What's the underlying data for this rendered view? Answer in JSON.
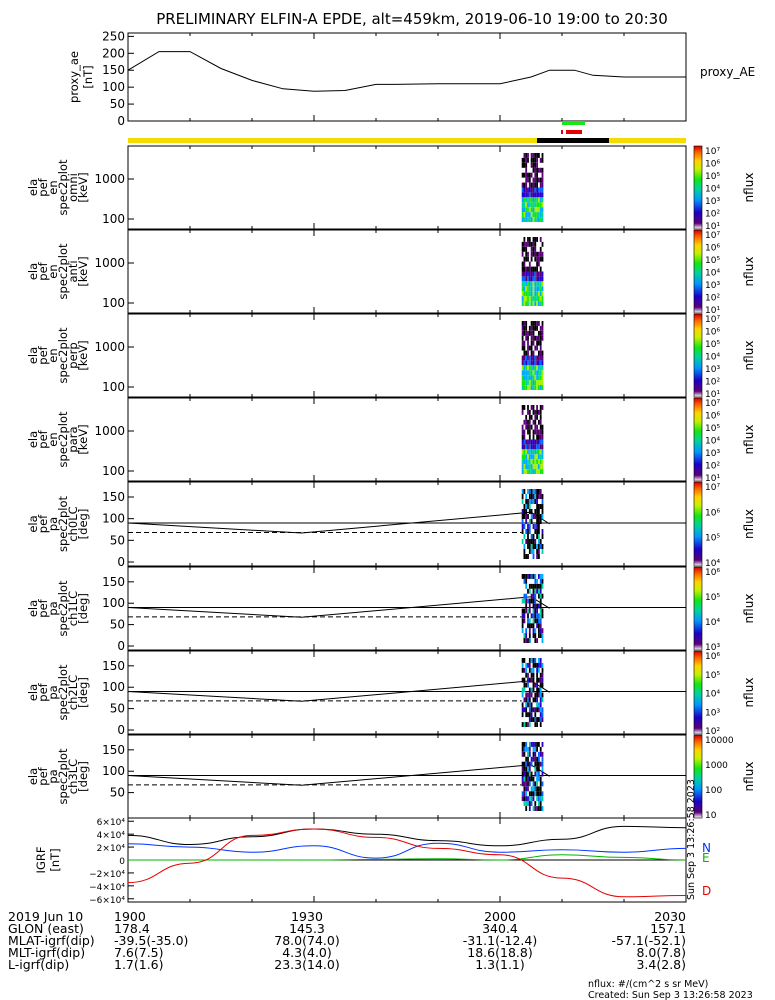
{
  "title": "PRELIMINARY ELFIN-A EPDE, alt=459km, 2019-06-10 19:00 to 20:30",
  "colors": {
    "flag_yellow": "#f5dc00",
    "flag_black": "#000000",
    "flag_green": "#19e619",
    "flag_red": "#e60000",
    "bfield_x": "#000000",
    "bfield_y": "#0033ff",
    "bfield_z": "#00b400",
    "bfield_d": "#e60000"
  },
  "chart_data": [
    {
      "type": "line",
      "name": "proxy_ae",
      "ylabel": [
        "proxy_ae",
        "[nT]"
      ],
      "right_label": "proxy_AE",
      "ylim": [
        0,
        260
      ],
      "yticks": [
        "250",
        "200",
        "150",
        "100",
        "50",
        "0"
      ],
      "ytick_values": [
        250,
        200,
        150,
        100,
        50,
        0
      ],
      "x_minutes": [
        0,
        5,
        10,
        15,
        20,
        25,
        30,
        35,
        40,
        43,
        50,
        55,
        60,
        65,
        68,
        72,
        75,
        80,
        85,
        90
      ],
      "values": [
        150,
        205,
        205,
        155,
        120,
        95,
        88,
        90,
        108,
        108,
        110,
        110,
        110,
        130,
        150,
        150,
        135,
        130,
        130,
        130
      ]
    },
    {
      "type": "heatmap",
      "name": "ela_pef_en_spec2plot_omni",
      "ylabel": [
        "ela",
        "pef",
        "en",
        "spec2plot",
        "omni",
        "[keV]"
      ],
      "yticks": [
        "1000",
        "100"
      ],
      "zlabel": "nflux",
      "zticks": [
        "10⁷",
        "10⁶",
        "10⁵",
        "10⁴",
        "10³",
        "10²",
        "10¹"
      ],
      "x_range_minutes": [
        63.5,
        67
      ]
    },
    {
      "type": "heatmap",
      "name": "ela_pef_en_spec2plot_anti",
      "ylabel": [
        "ela",
        "pef",
        "en",
        "spec2plot",
        "anti",
        "[keV]"
      ],
      "yticks": [
        "1000",
        "100"
      ],
      "zlabel": "nflux",
      "zticks": [
        "10⁷",
        "10⁶",
        "10⁵",
        "10⁴",
        "10³",
        "10²",
        "10¹"
      ],
      "x_range_minutes": [
        63.5,
        67
      ]
    },
    {
      "type": "heatmap",
      "name": "ela_pef_en_spec2plot_perp",
      "ylabel": [
        "ela",
        "pef",
        "en",
        "spec2plot",
        "perp",
        "[keV]"
      ],
      "yticks": [
        "1000",
        "100"
      ],
      "zlabel": "nflux",
      "zticks": [
        "10⁷",
        "10⁶",
        "10⁵",
        "10⁴",
        "10³",
        "10²",
        "10¹"
      ],
      "x_range_minutes": [
        63.5,
        67
      ]
    },
    {
      "type": "heatmap",
      "name": "ela_pef_en_spec2plot_para",
      "ylabel": [
        "ela",
        "pef",
        "en",
        "spec2plot",
        "para",
        "[keV]"
      ],
      "yticks": [
        "1000",
        "100"
      ],
      "zlabel": "nflux",
      "zticks": [
        "10⁷",
        "10⁶",
        "10⁵",
        "10⁴",
        "10³",
        "10²",
        "10¹"
      ],
      "x_range_minutes": [
        63.5,
        67
      ]
    },
    {
      "type": "heatmap",
      "name": "ela_pef_pa_spec2plot_ch0LC",
      "ylabel": [
        "ela",
        "pef",
        "pa",
        "spec2plot",
        "ch0LC",
        "[deg]"
      ],
      "ylim": [
        0,
        180
      ],
      "yticks": [
        "150",
        "100",
        "50",
        "0"
      ],
      "ytick_values": [
        150,
        100,
        50,
        0
      ],
      "zlabel": "nflux",
      "zticks": [
        "10⁷",
        "10⁶",
        "10⁵",
        "10⁴"
      ],
      "x_range_minutes": [
        63.5,
        67
      ],
      "losscone_x_minutes": [
        0,
        28,
        65
      ],
      "losscone_deg": [
        90,
        67,
        115
      ],
      "reference_deg": 90,
      "antilosscone_deg": 68
    },
    {
      "type": "heatmap",
      "name": "ela_pef_pa_spec2plot_ch1LC",
      "ylabel": [
        "ela",
        "pef",
        "pa",
        "spec2plot",
        "ch1LC",
        "[deg]"
      ],
      "ylim": [
        0,
        180
      ],
      "yticks": [
        "150",
        "100",
        "50",
        "0"
      ],
      "ytick_values": [
        150,
        100,
        50,
        0
      ],
      "zlabel": "nflux",
      "zticks": [
        "10⁶",
        "10⁵",
        "10⁴",
        "10³"
      ],
      "x_range_minutes": [
        63.5,
        67
      ],
      "losscone_x_minutes": [
        0,
        28,
        65
      ],
      "losscone_deg": [
        90,
        67,
        115
      ],
      "reference_deg": 90,
      "antilosscone_deg": 68
    },
    {
      "type": "heatmap",
      "name": "ela_pef_pa_spec2plot_ch2LC",
      "ylabel": [
        "ela",
        "pef",
        "pa",
        "spec2plot",
        "ch2LC",
        "[deg]"
      ],
      "ylim": [
        0,
        180
      ],
      "yticks": [
        "150",
        "100",
        "50",
        "0"
      ],
      "ytick_values": [
        150,
        100,
        50,
        0
      ],
      "zlabel": "nflux",
      "zticks": [
        "10⁶",
        "10⁵",
        "10⁴",
        "10³",
        "10²"
      ],
      "x_range_minutes": [
        63.5,
        67
      ],
      "losscone_x_minutes": [
        0,
        28,
        65
      ],
      "losscone_deg": [
        90,
        67,
        115
      ],
      "reference_deg": 90,
      "antilosscone_deg": 68
    },
    {
      "type": "heatmap",
      "name": "ela_pef_pa_spec2plot_ch3LC",
      "ylabel": [
        "ela",
        "pef",
        "pa",
        "spec2plot",
        "ch3LC",
        "[deg]"
      ],
      "ylim": [
        0,
        180
      ],
      "yticks": [
        "150",
        "100",
        "50"
      ],
      "ytick_values": [
        150,
        100,
        50
      ],
      "zlabel": "nflux",
      "zticks": [
        "10000",
        "1000",
        "100",
        "10"
      ],
      "x_range_minutes": [
        63.5,
        67
      ],
      "losscone_x_minutes": [
        0,
        28,
        65
      ],
      "losscone_deg": [
        90,
        67,
        115
      ],
      "reference_deg": 90,
      "antilosscone_deg": 68
    },
    {
      "type": "line",
      "name": "IGRF",
      "ylabel": [
        "IGRF",
        "[nT]"
      ],
      "ylim": [
        -65000,
        65000
      ],
      "yticks": [
        "6×10⁴",
        "4×10⁴",
        "2×10⁴",
        "0",
        "−2×10⁴",
        "−4×10⁴",
        "−6×10⁴"
      ],
      "ytick_values": [
        60000,
        40000,
        20000,
        0,
        -20000,
        -40000,
        -60000
      ],
      "x_minutes": [
        0,
        10,
        20,
        30,
        40,
        50,
        60,
        70,
        80,
        90
      ],
      "series": [
        {
          "name": "N",
          "color_key": "bfield_x",
          "values": [
            38000,
            24000,
            36000,
            48000,
            40000,
            30000,
            22000,
            32000,
            52000,
            50000
          ]
        },
        {
          "name": "E",
          "color_key": "bfield_y",
          "values": [
            25000,
            20000,
            12000,
            22000,
            3000,
            26000,
            12000,
            16000,
            12000,
            18000
          ]
        },
        {
          "name": "",
          "color_key": "bfield_z",
          "values": [
            0,
            0,
            0,
            0,
            1000,
            2000,
            0,
            8000,
            4000,
            0
          ]
        },
        {
          "name": "D",
          "color_key": "bfield_d",
          "values": [
            -35000,
            -5000,
            38000,
            48000,
            35000,
            18000,
            8000,
            -28000,
            -57000,
            -55000
          ]
        }
      ],
      "side_text": "Sun Sep 3 13:26:58 2023"
    }
  ],
  "x_axis": {
    "ticks_minutes": [
      0,
      30,
      60,
      90
    ],
    "tick_labels": [
      "1900",
      "1930",
      "2000",
      "2030"
    ]
  },
  "footer": {
    "rows": [
      {
        "label": "2019 Jun 10",
        "values": [
          "1900",
          "1930",
          "2000",
          "2030"
        ]
      },
      {
        "label": "GLON (east)",
        "values": [
          "178.4",
          "145.3",
          "340.4",
          "157.1"
        ]
      },
      {
        "label": "MLAT-igrf(dip)",
        "values": [
          "-39.5(-35.0)",
          "78.0(74.0)",
          "-31.1(-12.4)",
          "-57.1(-52.1)"
        ]
      },
      {
        "label": "MLT-igrf(dip)",
        "values": [
          "7.6(7.5)",
          "4.3(4.0)",
          "18.6(18.8)",
          "8.0(7.8)"
        ]
      },
      {
        "label": "L-igrf(dip)",
        "values": [
          "1.7(1.6)",
          "23.3(14.0)",
          "1.3(1.1)",
          "3.4(2.8)"
        ]
      }
    ],
    "units_note": "nflux: #/(cm^2 s sr MeV)",
    "created": "Created: Sun Sep  3 13:26:58 2023"
  }
}
